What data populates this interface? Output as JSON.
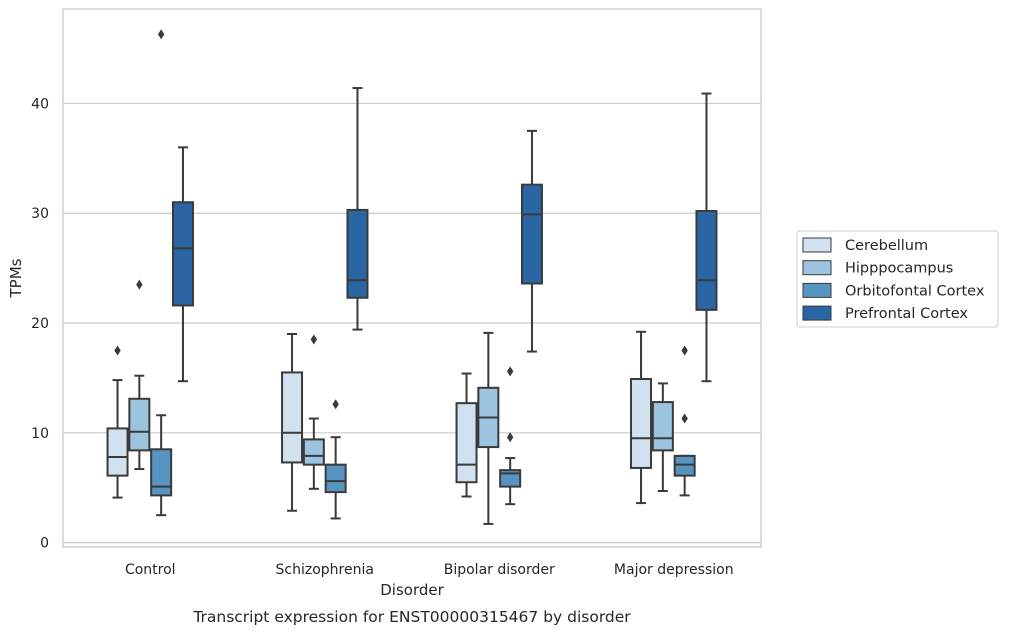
{
  "chart_data": {
    "type": "box",
    "xlabel": "Disorder",
    "ylabel": "TPMs",
    "caption": "Transcript expression for ENST00000315467 by disorder",
    "categories": [
      "Control",
      "Schizophrenia",
      "Bipolar disorder",
      "Major depression"
    ],
    "ylim": [
      -0.4,
      48.6
    ],
    "yticks": [
      0,
      10,
      20,
      30,
      40
    ],
    "grid": "horizontal",
    "legend_position": "right",
    "series": [
      {
        "name": "Cerebellum",
        "color": "#d1e1f0",
        "boxes": [
          {
            "whislo": 4.1,
            "q1": 6.1,
            "med": 7.8,
            "q3": 10.4,
            "whishi": 14.8,
            "fliers": [
              17.5
            ]
          },
          {
            "whislo": 2.9,
            "q1": 7.3,
            "med": 10.0,
            "q3": 15.5,
            "whishi": 19.0,
            "fliers": []
          },
          {
            "whislo": 4.2,
            "q1": 5.5,
            "med": 7.1,
            "q3": 12.7,
            "whishi": 15.4,
            "fliers": []
          },
          {
            "whislo": 3.6,
            "q1": 6.8,
            "med": 9.5,
            "q3": 14.9,
            "whishi": 19.2,
            "fliers": []
          }
        ]
      },
      {
        "name": "Hipppocampus",
        "color": "#9cc4de",
        "boxes": [
          {
            "whislo": 6.7,
            "q1": 8.4,
            "med": 10.1,
            "q3": 13.1,
            "whishi": 15.2,
            "fliers": [
              23.5
            ]
          },
          {
            "whislo": 4.9,
            "q1": 7.1,
            "med": 7.9,
            "q3": 9.4,
            "whishi": 11.3,
            "fliers": [
              18.5
            ]
          },
          {
            "whislo": 1.7,
            "q1": 8.7,
            "med": 11.4,
            "q3": 14.1,
            "whishi": 19.1,
            "fliers": []
          },
          {
            "whislo": 4.7,
            "q1": 8.4,
            "med": 9.5,
            "q3": 12.8,
            "whishi": 14.5,
            "fliers": []
          }
        ]
      },
      {
        "name": "Orbitofontal Cortex",
        "color": "#5894c2",
        "boxes": [
          {
            "whislo": 2.5,
            "q1": 4.3,
            "med": 5.1,
            "q3": 8.5,
            "whishi": 11.6,
            "fliers": [
              46.3
            ]
          },
          {
            "whislo": 2.2,
            "q1": 4.6,
            "med": 5.6,
            "q3": 7.1,
            "whishi": 9.6,
            "fliers": [
              12.6
            ]
          },
          {
            "whislo": 3.5,
            "q1": 5.1,
            "med": 6.3,
            "q3": 6.6,
            "whishi": 7.7,
            "fliers": [
              15.6,
              9.6
            ]
          },
          {
            "whislo": 4.3,
            "q1": 6.1,
            "med": 7.1,
            "q3": 7.9,
            "whishi": 7.9,
            "fliers": [
              17.5,
              11.3
            ]
          }
        ]
      },
      {
        "name": "Prefrontal Cortex",
        "color": "#2a66a4",
        "boxes": [
          {
            "whislo": 14.7,
            "q1": 21.6,
            "med": 26.8,
            "q3": 31.0,
            "whishi": 36.0,
            "fliers": []
          },
          {
            "whislo": 19.4,
            "q1": 22.3,
            "med": 23.9,
            "q3": 30.3,
            "whishi": 41.4,
            "fliers": []
          },
          {
            "whislo": 17.4,
            "q1": 23.6,
            "med": 29.9,
            "q3": 32.6,
            "whishi": 37.5,
            "fliers": []
          },
          {
            "whislo": 14.7,
            "q1": 21.2,
            "med": 23.9,
            "q3": 30.2,
            "whishi": 40.9,
            "fliers": []
          }
        ]
      }
    ]
  }
}
